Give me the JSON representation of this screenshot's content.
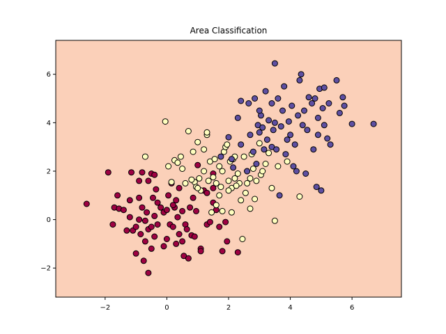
{
  "chart_data": {
    "type": "scatter",
    "title": "Area Classification",
    "xlabel": "",
    "ylabel": "",
    "xlim": [
      -3.6,
      7.6
    ],
    "ylim": [
      -3.2,
      7.4
    ],
    "xticks": [
      -2,
      0,
      2,
      4,
      6
    ],
    "yticks": [
      -2,
      0,
      2,
      4,
      6
    ],
    "grid": false,
    "background_color": "#fbd0b9",
    "series": [
      {
        "color": "#9e0142",
        "points": [
          [
            -2.6,
            0.65
          ],
          [
            -1.9,
            1.95
          ],
          [
            -1.6,
            1.0
          ],
          [
            -1.7,
            0.5
          ],
          [
            -1.75,
            -0.2
          ],
          [
            -1.55,
            0.45
          ],
          [
            -1.4,
            0.4
          ],
          [
            -1.3,
            -0.45
          ],
          [
            -1.2,
            0.8
          ],
          [
            -1.2,
            0.1
          ],
          [
            -1.15,
            1.95
          ],
          [
            -1.1,
            -0.45
          ],
          [
            -1.0,
            -1.4
          ],
          [
            -0.9,
            1.6
          ],
          [
            -0.9,
            0.9
          ],
          [
            -0.9,
            0.0
          ],
          [
            -0.85,
            -0.6
          ],
          [
            -0.8,
            1.95
          ],
          [
            -0.8,
            0.5
          ],
          [
            -0.75,
            -1.7
          ],
          [
            -0.7,
            -0.05
          ],
          [
            -0.7,
            -0.9
          ],
          [
            -0.65,
            0.3
          ],
          [
            -0.6,
            1.6
          ],
          [
            -0.6,
            -0.4
          ],
          [
            -0.6,
            -2.2
          ],
          [
            -0.5,
            1.9
          ],
          [
            -0.5,
            -0.3
          ],
          [
            -0.5,
            -1.2
          ],
          [
            -0.45,
            0.9
          ],
          [
            -0.4,
            -0.7
          ],
          [
            -0.4,
            1.85
          ],
          [
            -0.4,
            0.15
          ],
          [
            -0.35,
            1.25
          ],
          [
            -0.3,
            -0.2
          ],
          [
            -0.2,
            0.5
          ],
          [
            -0.1,
            -1.1
          ],
          [
            -0.1,
            0.3
          ],
          [
            0.0,
            0.4
          ],
          [
            0.0,
            -0.8
          ],
          [
            0.05,
            1.0
          ],
          [
            0.1,
            -0.2
          ],
          [
            0.15,
            1.5
          ],
          [
            0.2,
            -0.3
          ],
          [
            0.25,
            0.5
          ],
          [
            0.3,
            0.8
          ],
          [
            0.3,
            -1.0
          ],
          [
            0.35,
            0.1
          ],
          [
            0.4,
            1.3
          ],
          [
            0.4,
            -0.6
          ],
          [
            0.5,
            0.35
          ],
          [
            0.55,
            -1.5
          ],
          [
            0.6,
            -0.2
          ],
          [
            0.65,
            -0.4
          ],
          [
            0.7,
            -1.6
          ],
          [
            0.75,
            0.5
          ],
          [
            0.8,
            -0.65
          ],
          [
            0.85,
            0.9
          ],
          [
            0.9,
            -0.7
          ],
          [
            0.95,
            0.35
          ],
          [
            1.0,
            2.25
          ],
          [
            1.1,
            -1.2
          ],
          [
            1.1,
            -1.3
          ],
          [
            1.2,
            1.2
          ],
          [
            1.3,
            -0.2
          ],
          [
            1.4,
            -0.1
          ],
          [
            1.5,
            1.9
          ],
          [
            1.5,
            0.7
          ],
          [
            1.5,
            1.3
          ],
          [
            1.6,
            0.4
          ],
          [
            1.7,
            -0.3
          ],
          [
            1.8,
            -1.3
          ],
          [
            1.9,
            -0.1
          ],
          [
            1.95,
            -0.9
          ],
          [
            2.3,
            -1.35
          ],
          [
            1.3,
            1.1
          ],
          [
            -0.3,
            0.7
          ],
          [
            0.5,
            -0.9
          ],
          [
            -1.0,
            -0.3
          ],
          [
            0.2,
            0.6
          ]
        ]
      },
      {
        "color": "#ffffbf",
        "points": [
          [
            -0.7,
            2.6
          ],
          [
            -0.05,
            4.05
          ],
          [
            0.05,
            2.2
          ],
          [
            0.15,
            1.55
          ],
          [
            0.25,
            2.45
          ],
          [
            0.35,
            2.35
          ],
          [
            0.45,
            2.6
          ],
          [
            0.5,
            2.1
          ],
          [
            0.6,
            1.5
          ],
          [
            0.7,
            3.65
          ],
          [
            0.85,
            2.8
          ],
          [
            0.9,
            1.55
          ],
          [
            0.95,
            1.35
          ],
          [
            1.0,
            3.2
          ],
          [
            1.05,
            1.7
          ],
          [
            1.1,
            1.2
          ],
          [
            1.2,
            2.9
          ],
          [
            1.3,
            3.5
          ],
          [
            1.3,
            3.6
          ],
          [
            1.35,
            1.6
          ],
          [
            1.4,
            2.4
          ],
          [
            1.45,
            0.3
          ],
          [
            1.5,
            1.75
          ],
          [
            1.55,
            2.5
          ],
          [
            1.6,
            1.5
          ],
          [
            1.7,
            2.2
          ],
          [
            1.7,
            1.0
          ],
          [
            1.75,
            1.35
          ],
          [
            1.8,
            2.0
          ],
          [
            1.8,
            0.35
          ],
          [
            1.85,
            2.8
          ],
          [
            1.9,
            3.0
          ],
          [
            1.95,
            3.1
          ],
          [
            2.0,
            1.6
          ],
          [
            2.05,
            2.4
          ],
          [
            2.1,
            1.3
          ],
          [
            2.15,
            2.5
          ],
          [
            2.2,
            1.7
          ],
          [
            2.2,
            2.6
          ],
          [
            2.3,
            1.9
          ],
          [
            2.35,
            1.5
          ],
          [
            2.4,
            0.8
          ],
          [
            2.45,
            -0.8
          ],
          [
            2.5,
            2.6
          ],
          [
            2.55,
            1.1
          ],
          [
            2.6,
            2.0
          ],
          [
            2.7,
            1.7
          ],
          [
            2.7,
            0.45
          ],
          [
            2.75,
            2.7
          ],
          [
            2.8,
            2.1
          ],
          [
            2.85,
            0.85
          ],
          [
            2.9,
            1.6
          ],
          [
            3.0,
            3.15
          ],
          [
            3.05,
            1.85
          ],
          [
            3.1,
            2.0
          ],
          [
            3.2,
            2.3
          ],
          [
            3.3,
            2.75
          ],
          [
            3.4,
            1.3
          ],
          [
            3.5,
            -0.05
          ],
          [
            3.6,
            2.2
          ],
          [
            3.9,
            2.4
          ],
          [
            4.3,
            0.95
          ],
          [
            1.0,
            1.3
          ],
          [
            1.6,
            0.6
          ],
          [
            2.0,
            1.2
          ],
          [
            2.25,
            1.4
          ],
          [
            1.2,
            2.0
          ],
          [
            2.6,
            1.5
          ],
          [
            0.8,
            1.65
          ],
          [
            2.1,
            0.3
          ]
        ]
      },
      {
        "color": "#5e4fa2",
        "points": [
          [
            1.75,
            2.6
          ],
          [
            2.0,
            3.4
          ],
          [
            2.1,
            2.5
          ],
          [
            2.15,
            2.15
          ],
          [
            2.3,
            4.2
          ],
          [
            2.4,
            3.1
          ],
          [
            2.6,
            2.0
          ],
          [
            2.65,
            4.8
          ],
          [
            2.7,
            3.5
          ],
          [
            2.8,
            2.8
          ],
          [
            2.85,
            5.0
          ],
          [
            2.9,
            2.3
          ],
          [
            2.95,
            3.9
          ],
          [
            3.0,
            3.6
          ],
          [
            3.05,
            4.3
          ],
          [
            3.1,
            3.8
          ],
          [
            3.15,
            2.9
          ],
          [
            3.2,
            5.3
          ],
          [
            3.25,
            3.3
          ],
          [
            3.3,
            4.1
          ],
          [
            3.4,
            3.0
          ],
          [
            3.45,
            3.7
          ],
          [
            3.5,
            6.45
          ],
          [
            3.5,
            4.0
          ],
          [
            3.55,
            2.9
          ],
          [
            3.6,
            5.0
          ],
          [
            3.65,
            1.0
          ],
          [
            3.7,
            3.85
          ],
          [
            3.75,
            4.5
          ],
          [
            3.8,
            5.5
          ],
          [
            3.85,
            2.7
          ],
          [
            3.9,
            3.3
          ],
          [
            3.95,
            4.05
          ],
          [
            4.0,
            3.5
          ],
          [
            4.05,
            4.7
          ],
          [
            4.1,
            2.2
          ],
          [
            4.15,
            3.1
          ],
          [
            4.2,
            2.0
          ],
          [
            4.25,
            4.3
          ],
          [
            4.3,
            5.75
          ],
          [
            4.35,
            6.0
          ],
          [
            4.4,
            3.9
          ],
          [
            4.45,
            4.5
          ],
          [
            4.5,
            1.9
          ],
          [
            4.55,
            3.7
          ],
          [
            4.6,
            5.05
          ],
          [
            4.7,
            4.8
          ],
          [
            4.75,
            2.9
          ],
          [
            4.8,
            5.0
          ],
          [
            4.85,
            1.35
          ],
          [
            4.9,
            3.5
          ],
          [
            4.95,
            5.4
          ],
          [
            5.0,
            1.2
          ],
          [
            5.05,
            4.6
          ],
          [
            5.1,
            5.45
          ],
          [
            5.2,
            3.35
          ],
          [
            5.25,
            4.8
          ],
          [
            5.3,
            3.1
          ],
          [
            5.5,
            5.75
          ],
          [
            5.6,
            4.4
          ],
          [
            5.7,
            5.05
          ],
          [
            5.75,
            4.7
          ],
          [
            6.0,
            3.95
          ],
          [
            6.7,
            3.95
          ],
          [
            4.9,
            4.2
          ],
          [
            5.1,
            3.9
          ],
          [
            3.4,
            4.8
          ],
          [
            2.4,
            4.9
          ],
          [
            3.0,
            4.5
          ]
        ]
      }
    ]
  }
}
